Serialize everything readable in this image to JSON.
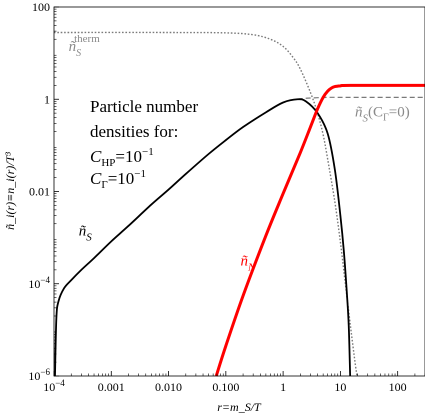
{
  "chart_data": {
    "type": "line",
    "title": "",
    "xlabel": "r=m_S/T",
    "ylabel": "ñ_i(r)≡n_i(r)/T³",
    "xscale": "log",
    "yscale": "log",
    "xlim": [
      0.0001,
      300
    ],
    "ylim": [
      1e-06,
      100
    ],
    "x_ticks": [
      {
        "value": 0.0001,
        "base": "10",
        "exp": "−4"
      },
      {
        "value": 0.001,
        "text": "0.001"
      },
      {
        "value": 0.01,
        "text": "0.010"
      },
      {
        "value": 0.1,
        "text": "0.100"
      },
      {
        "value": 1,
        "text": "1"
      },
      {
        "value": 10,
        "text": "10"
      },
      {
        "value": 100,
        "text": "100"
      }
    ],
    "y_ticks": [
      {
        "value": 1e-06,
        "base": "10",
        "exp": "−6"
      },
      {
        "value": 0.0001,
        "base": "10",
        "exp": "−4"
      },
      {
        "value": 0.01,
        "text": "0.01"
      },
      {
        "value": 1,
        "text": "1"
      },
      {
        "value": 100,
        "text": "100"
      }
    ],
    "annotation": {
      "line1": "Particle number",
      "line2": "densities for:",
      "chp_sym": "C",
      "chp_sub": "HP",
      "chp_eq": "=10",
      "chp_exp": "−1",
      "cg_sym": "C",
      "cg_sub": "Γ",
      "cg_eq": "=10",
      "cg_exp": "−1"
    },
    "series": [
      {
        "name": "ñ_S",
        "label_base": "ñ",
        "label_sub": "S",
        "color": "#000000",
        "style": "solid",
        "label_at": [
          0.00027,
          0.0011
        ],
        "points": [
          [
            0.000104,
            1e-06
          ],
          [
            0.00011,
            1.8e-05
          ],
          [
            0.00012,
            4.2e-05
          ],
          [
            0.00015,
            8e-05
          ],
          [
            0.0002,
            0.00012
          ],
          [
            0.0003,
            0.0002
          ],
          [
            0.0005,
            0.00036
          ],
          [
            0.001,
            0.00083
          ],
          [
            0.002,
            0.0018
          ],
          [
            0.005,
            0.0052
          ],
          [
            0.01,
            0.011
          ],
          [
            0.02,
            0.024
          ],
          [
            0.05,
            0.065
          ],
          [
            0.1,
            0.13
          ],
          [
            0.2,
            0.25
          ],
          [
            0.5,
            0.52
          ],
          [
            1,
            0.85
          ],
          [
            1.8,
            1.0
          ],
          [
            2.5,
            0.9
          ],
          [
            4,
            0.5
          ],
          [
            6,
            0.18
          ],
          [
            8,
            0.03
          ],
          [
            10,
            0.003
          ],
          [
            11.5,
            0.0005
          ],
          [
            13,
            6e-05
          ],
          [
            14,
            1.2e-05
          ],
          [
            14.8,
            1e-06
          ]
        ]
      },
      {
        "name": "ñ_N",
        "label_base": "ñ",
        "label_sub": "N",
        "color": "#ff0000",
        "style": "solid",
        "label_at": [
          0.18,
          0.00025
        ],
        "points": [
          [
            0.068,
            1e-06
          ],
          [
            0.1,
            4.5e-06
          ],
          [
            0.2,
            5.5e-05
          ],
          [
            0.5,
            0.0011
          ],
          [
            1,
            0.009
          ],
          [
            2,
            0.07
          ],
          [
            3,
            0.25
          ],
          [
            4,
            0.62
          ],
          [
            5,
            1.1
          ],
          [
            6,
            1.5
          ],
          [
            7,
            1.75
          ],
          [
            8,
            1.88
          ],
          [
            10,
            1.95
          ],
          [
            15,
            2.0
          ],
          [
            300,
            2.0
          ]
        ]
      },
      {
        "name": "ñ_S^therm",
        "label_base": "ñ",
        "label_sub": "S",
        "label_sup": "therm",
        "color": "#7a7a7a",
        "style": "dotted",
        "label_at": [
          0.00018,
          11
        ],
        "points": [
          [
            0.0001,
            28
          ],
          [
            0.01,
            28
          ],
          [
            0.1,
            27.5
          ],
          [
            0.3,
            25
          ],
          [
            0.6,
            20
          ],
          [
            1,
            14
          ],
          [
            1.5,
            8
          ],
          [
            2,
            4.5
          ],
          [
            3,
            1.4
          ],
          [
            4,
            0.5
          ],
          [
            5,
            0.17
          ],
          [
            6,
            0.05
          ],
          [
            8,
            0.006
          ],
          [
            10,
            0.0008
          ],
          [
            12,
            0.00012
          ],
          [
            15,
            1.2e-05
          ],
          [
            18,
            2e-06
          ],
          [
            19.5,
            1e-06
          ]
        ]
      },
      {
        "name": "ñ_S(C_Γ=0)",
        "label_base": "ñ",
        "label_sub": "S",
        "label_tail": "(C",
        "label_tail_sub": "Γ",
        "label_tail_end": "=0)",
        "color": "#7a7a7a",
        "style": "dashed",
        "label_at": [
          18,
          0.42
        ],
        "points": [
          [
            1.8,
            1.0
          ],
          [
            2.5,
            1.05
          ],
          [
            4,
            1.08
          ],
          [
            6,
            1.1
          ],
          [
            10,
            1.1
          ],
          [
            300,
            1.1
          ]
        ]
      }
    ],
    "grid": false,
    "legend": "none"
  }
}
